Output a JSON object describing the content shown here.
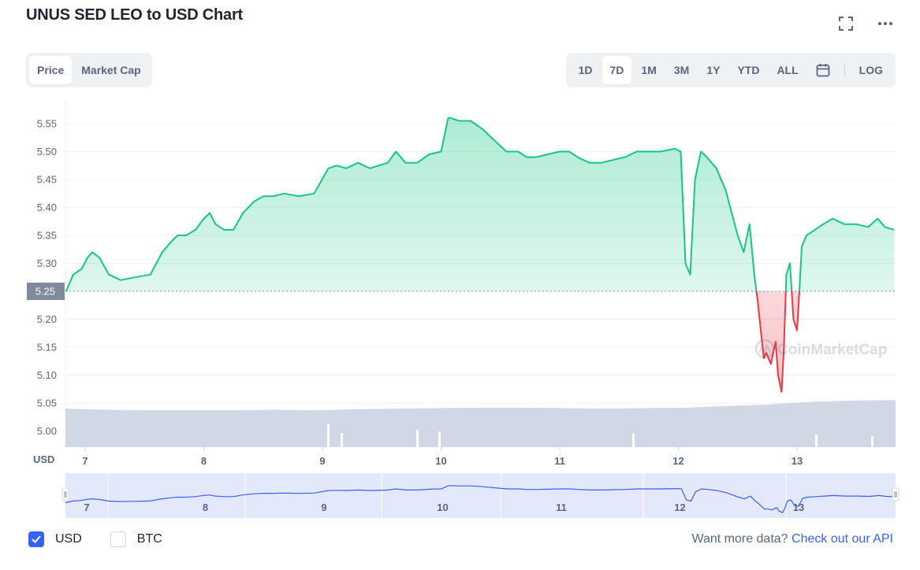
{
  "title": "UNUS SED LEO to USD Chart",
  "icons": {
    "fullscreen": "fullscreen-icon",
    "more": "more-horizontal-icon",
    "calendar": "calendar-icon",
    "watermark": "coinmarketcap-logo"
  },
  "tabs_left": [
    {
      "label": "Price",
      "active": true
    },
    {
      "label": "Market Cap",
      "active": false
    }
  ],
  "ranges": [
    {
      "label": "1D",
      "active": false
    },
    {
      "label": "7D",
      "active": true
    },
    {
      "label": "1M",
      "active": false
    },
    {
      "label": "3M",
      "active": false
    },
    {
      "label": "1Y",
      "active": false
    },
    {
      "label": "YTD",
      "active": false
    },
    {
      "label": "ALL",
      "active": false
    }
  ],
  "log_label": "LOG",
  "watermark_text": "CoinMarketCap",
  "currency_label": "USD",
  "colors": {
    "up": "#16c784",
    "down": "#ea3943",
    "volume": "#cfd6e4",
    "accent": "#3861fb",
    "nav_fill": "#e4e8fb",
    "marker": "#808a9d"
  },
  "chart_data": {
    "type": "line",
    "ylabel": "USD",
    "ylim": [
      4.97,
      5.58
    ],
    "yticks": [
      "5.55",
      "5.50",
      "5.45",
      "5.40",
      "5.35",
      "5.30",
      "5.25",
      "5.20",
      "5.15",
      "5.10",
      "5.05",
      "5.00"
    ],
    "xticks": [
      "7",
      "8",
      "9",
      "10",
      "11",
      "12",
      "13"
    ],
    "baseline": 5.25,
    "baseline_label": "5.25",
    "xlim": [
      6.84,
      13.82
    ],
    "series": [
      {
        "x": [
          6.84,
          6.9,
          6.97,
          7.02,
          7.06,
          7.12,
          7.2,
          7.3,
          7.42,
          7.55,
          7.65,
          7.73,
          7.78,
          7.85,
          7.93,
          8.0,
          8.05,
          8.1,
          8.17,
          8.25,
          8.33,
          8.42,
          8.5,
          8.58,
          8.68,
          8.8,
          8.93,
          9.05,
          9.12,
          9.2,
          9.3,
          9.4,
          9.55,
          9.62,
          9.7,
          9.8,
          9.9,
          10.0,
          10.06,
          10.08,
          10.15,
          10.25,
          10.35,
          10.45,
          10.55,
          10.65,
          10.72,
          10.8,
          10.9,
          11.0,
          11.08,
          11.15,
          11.25,
          11.35,
          11.45,
          11.55,
          11.65,
          11.75,
          11.85,
          11.97,
          12.02,
          12.06,
          12.1,
          12.14,
          12.19,
          12.24,
          12.32,
          12.4,
          12.45,
          12.5,
          12.55,
          12.6,
          12.64,
          12.67,
          12.7,
          12.72,
          12.74,
          12.78,
          12.82,
          12.84,
          12.87,
          12.89,
          12.91,
          12.94,
          12.97,
          13.0,
          13.02,
          13.04,
          13.08,
          13.15,
          13.22,
          13.3,
          13.4,
          13.5,
          13.6,
          13.68,
          13.74,
          13.82
        ],
        "y": [
          5.25,
          5.28,
          5.29,
          5.31,
          5.32,
          5.31,
          5.28,
          5.27,
          5.275,
          5.28,
          5.32,
          5.34,
          5.35,
          5.35,
          5.36,
          5.38,
          5.39,
          5.37,
          5.36,
          5.36,
          5.39,
          5.41,
          5.42,
          5.42,
          5.425,
          5.42,
          5.425,
          5.47,
          5.475,
          5.47,
          5.48,
          5.47,
          5.48,
          5.5,
          5.48,
          5.48,
          5.495,
          5.5,
          5.56,
          5.56,
          5.555,
          5.555,
          5.54,
          5.52,
          5.5,
          5.5,
          5.49,
          5.49,
          5.495,
          5.5,
          5.5,
          5.49,
          5.48,
          5.48,
          5.485,
          5.49,
          5.5,
          5.5,
          5.5,
          5.505,
          5.5,
          5.3,
          5.28,
          5.45,
          5.5,
          5.49,
          5.47,
          5.43,
          5.39,
          5.35,
          5.32,
          5.37,
          5.28,
          5.23,
          5.17,
          5.13,
          5.14,
          5.12,
          5.16,
          5.1,
          5.07,
          5.15,
          5.28,
          5.3,
          5.2,
          5.18,
          5.25,
          5.33,
          5.35,
          5.36,
          5.37,
          5.38,
          5.37,
          5.37,
          5.365,
          5.38,
          5.365,
          5.36
        ]
      }
    ],
    "volume_relative": [
      0.72,
      0.7,
      0.69,
      0.69,
      0.69,
      0.7,
      0.69,
      0.71,
      0.72,
      0.73,
      0.74,
      0.74,
      0.73,
      0.72,
      0.73,
      0.74,
      0.77,
      0.8,
      0.85,
      0.87,
      0.88
    ]
  },
  "legend": [
    {
      "label": "USD",
      "checked": true
    },
    {
      "label": "BTC",
      "checked": false
    }
  ],
  "api_prompt": "Want more data?",
  "api_link": "Check out our API"
}
